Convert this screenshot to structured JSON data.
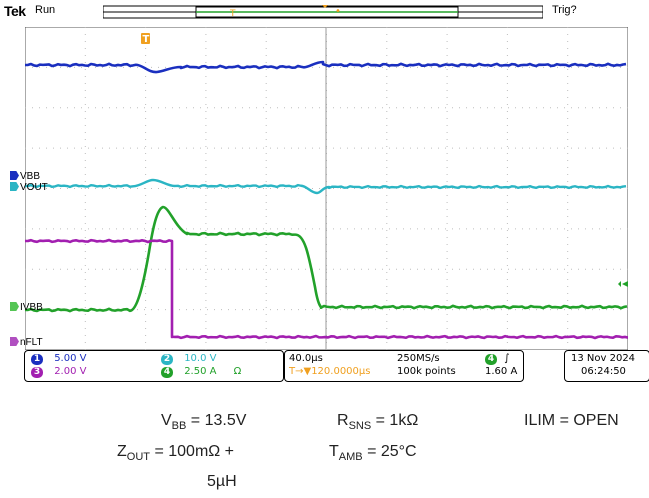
{
  "header": {
    "brand": "Tek",
    "acquisition_state": "Run",
    "trigger_status": "Trig?"
  },
  "channels": [
    {
      "id": "1",
      "label": "VBB",
      "scale": "5.00 V",
      "color": "#1a2fbf"
    },
    {
      "id": "2",
      "label": "VOUT",
      "scale": "10.0 V",
      "color": "#2bb5c4"
    },
    {
      "id": "3",
      "label": "nFLT",
      "scale": "2.00 V",
      "color": "#a21fb0"
    },
    {
      "id": "4",
      "label": "IVBB",
      "scale": "2.50 A",
      "color": "#22a12a"
    }
  ],
  "channel4_termination_icon": "omega-icon",
  "timebase": {
    "scale": "40.0µs",
    "trigger_offset": "▼120.0000µs",
    "sample_rate": "250MS/s",
    "record_length": "100k points"
  },
  "trigger": {
    "source": "4",
    "slope_icon": "rising-edge-icon",
    "level": "1.60 A"
  },
  "datetime": {
    "date": "13 Nov 2024",
    "time": "06:24:50"
  },
  "conditions": {
    "vbb": {
      "symbol": "V",
      "subscript": "BB",
      "value": " = 13.5V"
    },
    "rsns": {
      "symbol": "R",
      "subscript": "SNS",
      "value": " = 1kΩ"
    },
    "ilim": {
      "text": "ILIM = OPEN"
    },
    "zout_line1": {
      "symbol": "Z",
      "subscript": "OUT",
      "value": " = 100mΩ +"
    },
    "zout_line2": "5µH",
    "tamb": {
      "symbol": "T",
      "subscript": "AMB",
      "value": " = 25°C"
    }
  },
  "colors": {
    "trigger_marker": "#f0a020",
    "grid": "#bdbdbd",
    "record_window": "#22a12a"
  }
}
